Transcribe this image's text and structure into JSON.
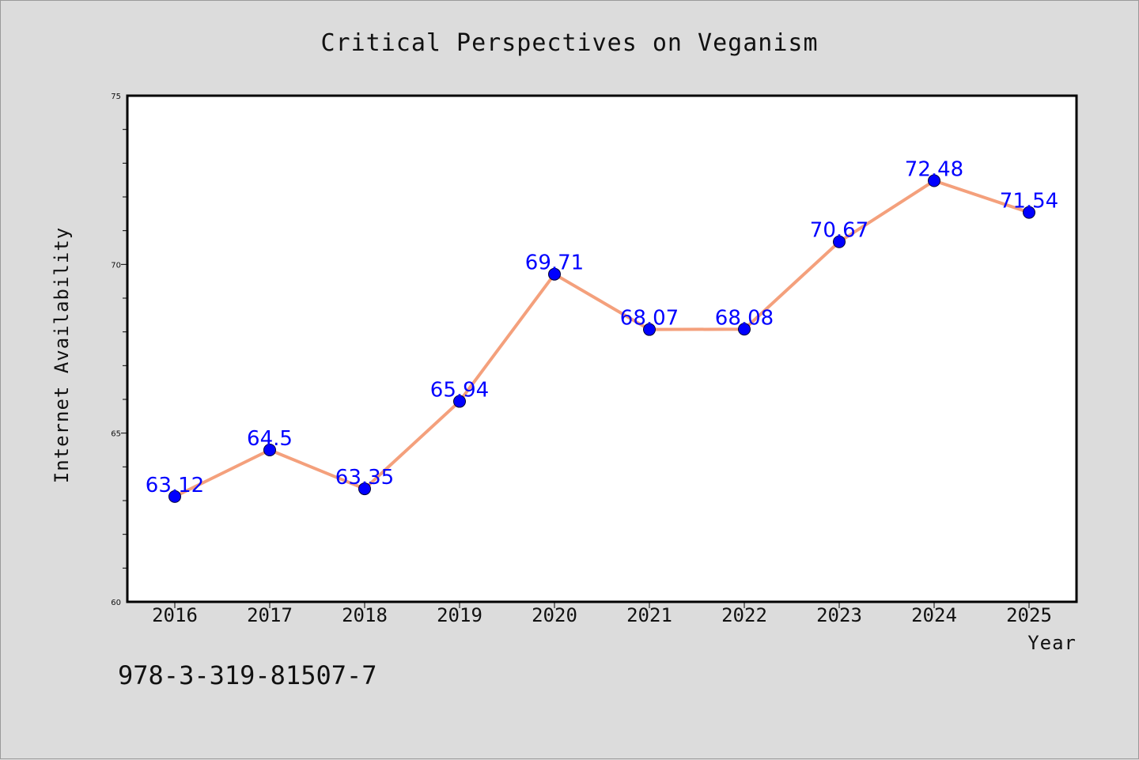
{
  "chart_data": {
    "type": "line",
    "title": "Critical Perspectives on Veganism",
    "xlabel": "Year",
    "ylabel": "Internet Availability",
    "categories": [
      "2016",
      "2017",
      "2018",
      "2019",
      "2020",
      "2021",
      "2022",
      "2023",
      "2024",
      "2025"
    ],
    "series": [
      {
        "values": [
          63.12,
          64.5,
          63.35,
          65.94,
          69.71,
          68.07,
          68.08,
          70.67,
          72.48,
          71.54
        ],
        "data_labels": [
          "63.12",
          "64.5",
          "63.35",
          "65.94",
          "69.71",
          "68.07",
          "68.08",
          "70.67",
          "72.48",
          "71.54"
        ]
      }
    ],
    "ylim": [
      60,
      75
    ],
    "yticks": [
      "60",
      "65",
      "70",
      "75"
    ],
    "grid": false,
    "colors": {
      "line": "#f4a07c",
      "marker": "#0000ff",
      "data_label": "#0000ff",
      "plot_background": "#ffffff",
      "figure_background": "#dcdcdc"
    }
  },
  "footer": {
    "isbn": "978-3-319-81507-7"
  }
}
